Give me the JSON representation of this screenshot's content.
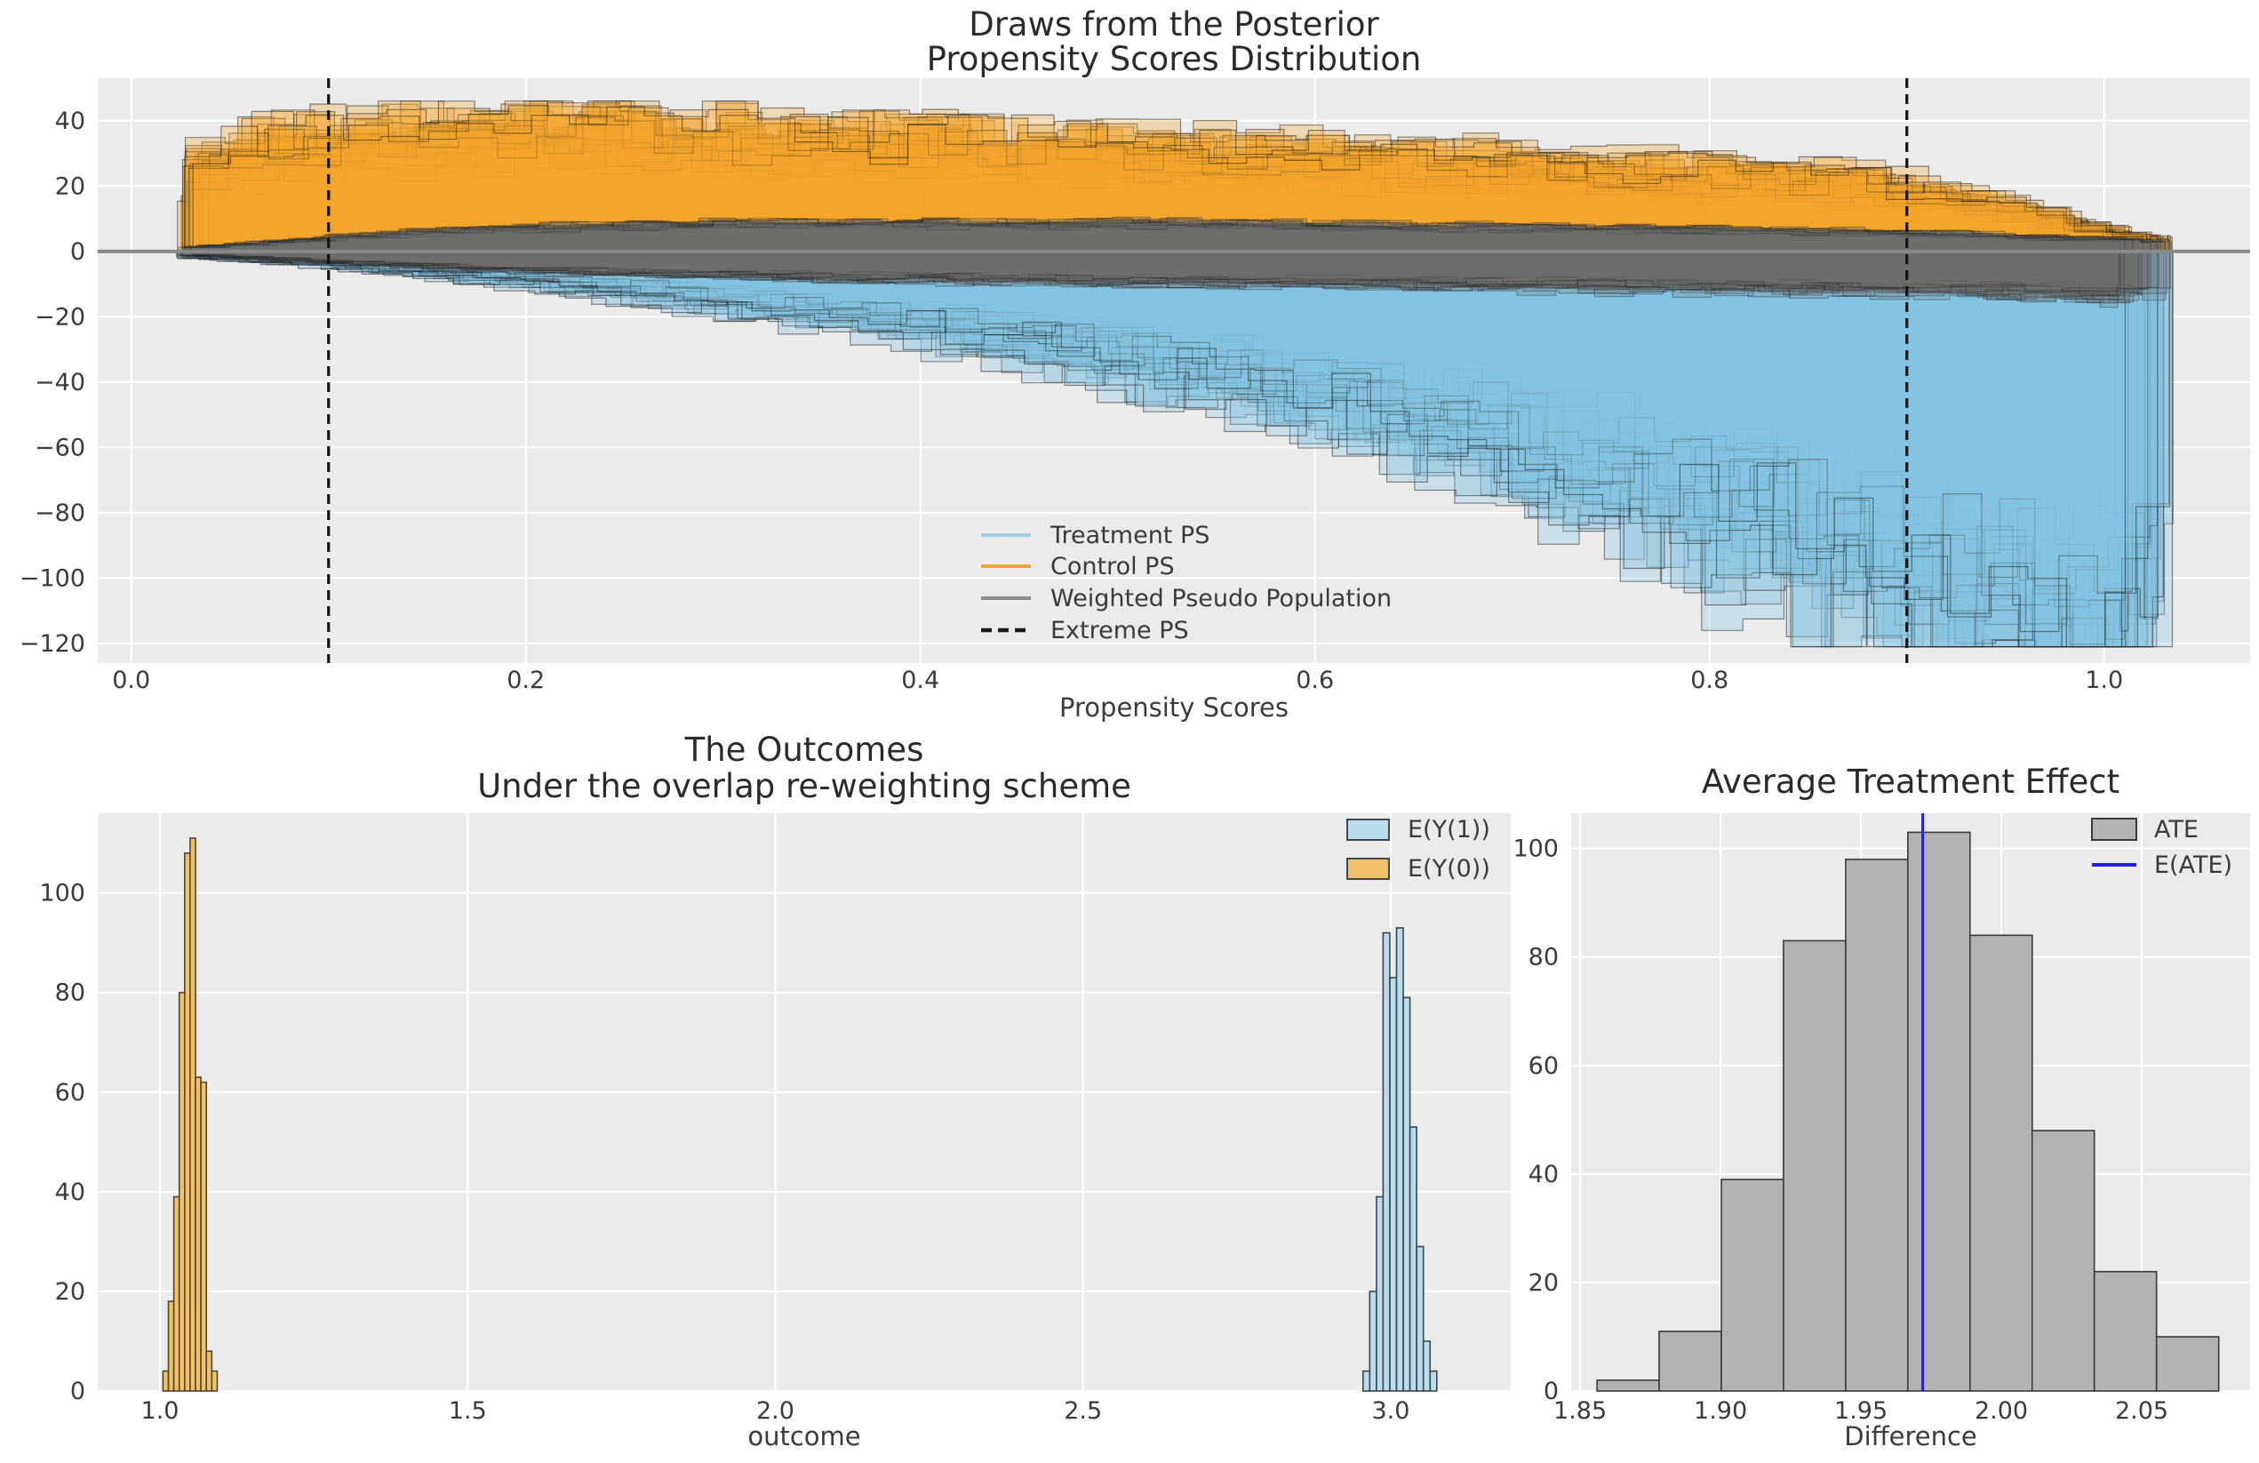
{
  "figure": {
    "background": "#ffffff",
    "axes_background": "#ebebeb",
    "grid_color": "#ffffff",
    "text_color": "#3b3b3b"
  },
  "chart_data": [
    {
      "id": "posterior_ps",
      "type": "histogram-draws",
      "title": [
        "Draws from the Posterior",
        "Propensity Scores Distribution"
      ],
      "xlabel": "Propensity Scores",
      "xtick_labels": [
        "0.0",
        "0.2",
        "0.4",
        "0.6",
        "0.8",
        "1.0"
      ],
      "xtick_values": [
        0.0,
        0.2,
        0.4,
        0.6,
        0.8,
        1.0
      ],
      "ytick_labels": [
        "40",
        "20",
        "0",
        "−20",
        "−40",
        "−60",
        "−80",
        "−100",
        "−120"
      ],
      "ytick_values": [
        40,
        20,
        0,
        -20,
        -40,
        -60,
        -80,
        -100,
        -120
      ],
      "xlim": [
        -0.017,
        1.074
      ],
      "ylim": [
        -126,
        53
      ],
      "extreme_ps_lines": [
        0.1,
        0.9
      ],
      "zero_line_y": 0,
      "legend": [
        {
          "label": "Treatment PS",
          "type": "line",
          "color": "#9ccee8"
        },
        {
          "label": "Control PS",
          "type": "line",
          "color": "#f5a42c"
        },
        {
          "label": "Weighted Pseudo Population",
          "type": "line",
          "color": "#8a8a8a"
        },
        {
          "label": "Extreme PS",
          "type": "dashed-line",
          "color": "#1a1a1a"
        }
      ],
      "colors": {
        "control_fill": "#f5a42c",
        "treatment_fill": "#85c3e2",
        "weighted_fill": "#6f6f6f",
        "edge": "#1c1c1c",
        "zero_line": "#898989",
        "extreme_line": "#141414"
      },
      "profiles": {
        "x": [
          0.03,
          0.08,
          0.13,
          0.18,
          0.24,
          0.3,
          0.38,
          0.46,
          0.54,
          0.62,
          0.7,
          0.78,
          0.84,
          0.89,
          0.93,
          0.97,
          1.0,
          1.03
        ],
        "control": [
          24,
          30,
          33,
          34.5,
          33.5,
          32,
          30.5,
          29,
          27.5,
          26,
          24,
          22,
          21,
          19,
          15,
          10,
          6,
          3.5
        ],
        "treatment": [
          -1.5,
          -3,
          -5,
          -7.5,
          -11,
          -15,
          -21,
          -28,
          -36,
          -46,
          -58,
          -74,
          -85,
          -95,
          -103,
          -108,
          -110,
          -108
        ],
        "weighted_above": [
          1,
          3,
          5,
          6.5,
          7.5,
          8,
          8,
          8,
          8,
          7.5,
          7,
          6.5,
          6,
          5.5,
          5,
          4,
          3.5,
          3
        ],
        "weighted_below": [
          -1,
          -2.5,
          -4,
          -5.5,
          -6.5,
          -7.5,
          -8.5,
          -9,
          -9.5,
          -10,
          -10.5,
          -11,
          -11.5,
          -12,
          -12.5,
          -13,
          -13.5,
          -13.5
        ]
      },
      "draws": {
        "n_control": 36,
        "n_treatment": 36,
        "n_weighted": 20,
        "bin_width": 0.02,
        "x_start": 0.032,
        "x_end": 1.005,
        "seed": 11,
        "clamp_control_max": 46,
        "clamp_treatment_min": -121
      }
    },
    {
      "id": "outcomes",
      "type": "bar",
      "title": [
        "The Outcomes",
        "Under the overlap re-weighting scheme"
      ],
      "xlabel": "outcome",
      "xtick_labels": [
        "1.0",
        "1.5",
        "2.0",
        "2.5",
        "3.0"
      ],
      "xtick_values": [
        1.0,
        1.5,
        2.0,
        2.5,
        3.0
      ],
      "ytick_labels": [
        "0",
        "20",
        "40",
        "60",
        "80",
        "100"
      ],
      "ytick_values": [
        0,
        20,
        40,
        60,
        80,
        100
      ],
      "xlim": [
        0.899,
        3.195
      ],
      "ylim": [
        0,
        116
      ],
      "series": [
        {
          "name": "E(Y(1))",
          "fill": "#b9dcec",
          "edge": "#3d464d",
          "bin_start": 2.955,
          "bin_width": 0.0109,
          "heights": [
            4,
            20,
            39,
            92,
            83,
            93,
            79,
            53,
            29,
            10,
            4
          ]
        },
        {
          "name": "E(Y(0))",
          "fill": "#f0c169",
          "edge": "#514633",
          "bin_start": 1.005,
          "bin_width": 0.0088,
          "heights": [
            4,
            18,
            39,
            80,
            108,
            111,
            63,
            62,
            8,
            4
          ]
        }
      ],
      "legend": [
        {
          "label": "E(Y(1))",
          "type": "patch",
          "color": "#b9dcec"
        },
        {
          "label": "E(Y(0))",
          "type": "patch",
          "color": "#f0c169"
        }
      ]
    },
    {
      "id": "ate",
      "type": "bar",
      "title": [
        "Average Treatment Effect"
      ],
      "xlabel": "Difference",
      "xtick_labels": [
        "1.85",
        "1.90",
        "1.95",
        "2.00",
        "2.05"
      ],
      "xtick_values": [
        1.85,
        1.9,
        1.95,
        2.0,
        2.05
      ],
      "ytick_labels": [
        "0",
        "20",
        "40",
        "60",
        "80",
        "100"
      ],
      "ytick_values": [
        0,
        20,
        40,
        60,
        80,
        100
      ],
      "xlim": [
        1.8468,
        2.0886
      ],
      "ylim": [
        0,
        106.5
      ],
      "series": [
        {
          "name": "ATE",
          "fill": "#b3b3b3",
          "edge": "#3a3a3a",
          "bin_start": 1.856,
          "bin_width": 0.02214,
          "heights": [
            2,
            11,
            39,
            83,
            98,
            103,
            84,
            48,
            22,
            10
          ]
        }
      ],
      "eate_line": {
        "value": 1.972,
        "color": "#2222dd"
      },
      "legend": [
        {
          "label": "ATE",
          "type": "patch",
          "color": "#b3b3b3"
        },
        {
          "label": "E(ATE)",
          "type": "line",
          "color": "#2222dd"
        }
      ]
    }
  ]
}
